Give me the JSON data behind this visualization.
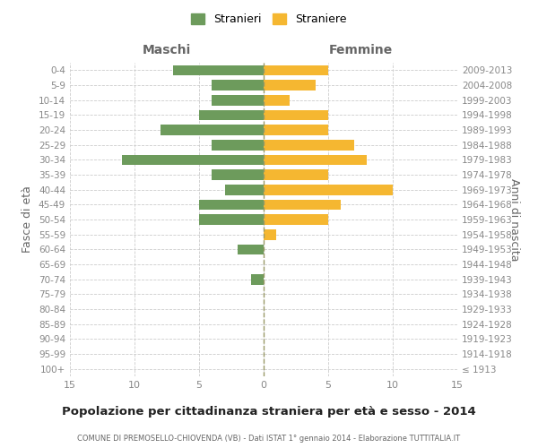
{
  "age_groups": [
    "100+",
    "95-99",
    "90-94",
    "85-89",
    "80-84",
    "75-79",
    "70-74",
    "65-69",
    "60-64",
    "55-59",
    "50-54",
    "45-49",
    "40-44",
    "35-39",
    "30-34",
    "25-29",
    "20-24",
    "15-19",
    "10-14",
    "5-9",
    "0-4"
  ],
  "birth_years": [
    "≤ 1913",
    "1914-1918",
    "1919-1923",
    "1924-1928",
    "1929-1933",
    "1934-1938",
    "1939-1943",
    "1944-1948",
    "1949-1953",
    "1954-1958",
    "1959-1963",
    "1964-1968",
    "1969-1973",
    "1974-1978",
    "1979-1983",
    "1984-1988",
    "1989-1993",
    "1994-1998",
    "1999-2003",
    "2004-2008",
    "2009-2013"
  ],
  "males": [
    0,
    0,
    0,
    0,
    0,
    0,
    1,
    0,
    2,
    0,
    5,
    5,
    3,
    4,
    11,
    4,
    8,
    5,
    4,
    4,
    7
  ],
  "females": [
    0,
    0,
    0,
    0,
    0,
    0,
    0,
    0,
    0,
    1,
    5,
    6,
    10,
    5,
    8,
    7,
    5,
    5,
    2,
    4,
    5
  ],
  "male_color": "#6d9b5c",
  "female_color": "#f5b731",
  "grid_color": "#cccccc",
  "center_line_color": "#999966",
  "xlim": 15,
  "title": "Popolazione per cittadinanza straniera per età e sesso - 2014",
  "subtitle": "COMUNE DI PREMOSELLO-CHIOVENDA (VB) - Dati ISTAT 1° gennaio 2014 - Elaborazione TUTTITALIA.IT",
  "ylabel_left": "Fasce di età",
  "ylabel_right": "Anni di nascita",
  "header_left": "Maschi",
  "header_right": "Femmine",
  "legend_stranieri": "Stranieri",
  "legend_straniere": "Straniere",
  "bg_color": "#ffffff",
  "tick_color": "#888888",
  "header_color": "#666666"
}
